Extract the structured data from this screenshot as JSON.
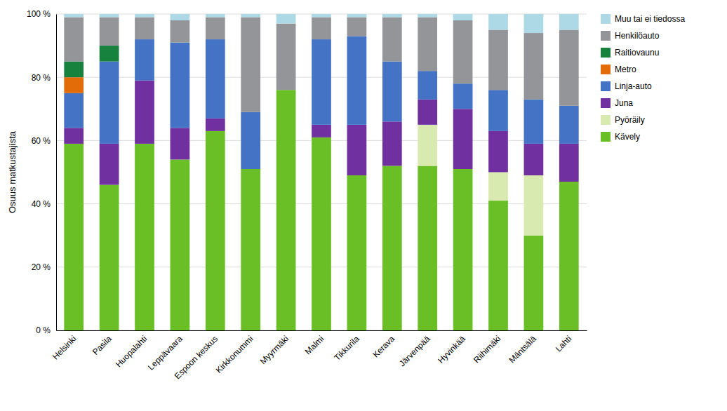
{
  "chart_data": {
    "type": "bar",
    "stacked": true,
    "ylabel": "Osuus matkustajista",
    "categories": [
      "Helsinki",
      "Pasila",
      "Huopalahti",
      "Leppävaara",
      "Espoon keskus",
      "Kirkkonummi",
      "Myyrmäki",
      "Malmi",
      "Tikkurila",
      "Kerava",
      "Järvenpää",
      "Hyvinkää",
      "Riihimäki",
      "Mäntsälä",
      "Lahti"
    ],
    "series": [
      {
        "name": "Kävely",
        "color": "#6abf27",
        "values": [
          59,
          46,
          59,
          54,
          63,
          51,
          76,
          61,
          49,
          52,
          52,
          51,
          41,
          30,
          47
        ]
      },
      {
        "name": "Pyöräily",
        "color": "#d9eab0",
        "values": [
          0,
          0,
          0,
          0,
          0,
          0,
          0,
          0,
          0,
          0,
          13,
          0,
          9,
          19,
          0
        ]
      },
      {
        "name": "Juna",
        "color": "#7030a0",
        "values": [
          5,
          13,
          20,
          10,
          4,
          0,
          0,
          4,
          16,
          14,
          8,
          19,
          13,
          10,
          12
        ]
      },
      {
        "name": "Linja-auto",
        "color": "#4472c4",
        "values": [
          11,
          26,
          13,
          27,
          25,
          18,
          0,
          27,
          28,
          19,
          9,
          8,
          13,
          14,
          12
        ]
      },
      {
        "name": "Metro",
        "color": "#e36c09",
        "values": [
          5,
          0,
          0,
          0,
          0,
          0,
          0,
          0,
          0,
          0,
          0,
          0,
          0,
          0,
          0
        ]
      },
      {
        "name": "Raitiovaunu",
        "color": "#17813e",
        "values": [
          5,
          5,
          0,
          0,
          0,
          0,
          0,
          0,
          0,
          0,
          0,
          0,
          0,
          0,
          0
        ]
      },
      {
        "name": "Henkilöauto",
        "color": "#939598",
        "values": [
          14,
          9,
          7,
          7,
          7,
          30,
          21,
          7,
          6,
          14,
          17,
          20,
          19,
          21,
          24
        ]
      },
      {
        "name": "Muu tai ei tiedossa",
        "color": "#add8e6",
        "values": [
          1,
          1,
          1,
          2,
          1,
          1,
          3,
          1,
          1,
          1,
          1,
          2,
          5,
          6,
          5
        ]
      }
    ],
    "ylim": [
      0,
      100
    ],
    "yticks": [
      {
        "value": 0,
        "label": "0 %"
      },
      {
        "value": 20,
        "label": "20 %"
      },
      {
        "value": 40,
        "label": "40 %"
      },
      {
        "value": 60,
        "label": "60 %"
      },
      {
        "value": 80,
        "label": "80 %"
      },
      {
        "value": 100,
        "label": "100 %"
      }
    ],
    "grid": true,
    "legend": "right"
  }
}
